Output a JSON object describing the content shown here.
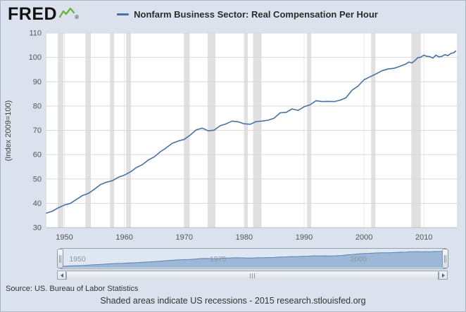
{
  "header": {
    "logo_text": "FRED",
    "registered_mark": "®",
    "legend_label": "Nonfarm Business Sector: Real Compensation Per Hour"
  },
  "chart_data": {
    "type": "line",
    "title": "Nonfarm Business Sector: Real Compensation Per Hour",
    "xlabel": "",
    "ylabel": "(Index 2009=100)",
    "xlim": [
      1947,
      2015.5
    ],
    "ylim": [
      30,
      110
    ],
    "xticks": [
      1950,
      1960,
      1970,
      1980,
      1990,
      2000,
      2010
    ],
    "yticks": [
      30,
      40,
      50,
      60,
      70,
      80,
      90,
      100,
      110
    ],
    "grid": true,
    "legend_position": "top",
    "line_color": "#4572a7",
    "recession_color": "#e0e0e0",
    "series": [
      {
        "name": "Nonfarm Business Sector: Real Compensation Per Hour",
        "x": [
          1947,
          1948,
          1949,
          1950,
          1951,
          1952,
          1953,
          1954,
          1955,
          1956,
          1957,
          1958,
          1959,
          1960,
          1961,
          1962,
          1963,
          1964,
          1965,
          1966,
          1967,
          1968,
          1969,
          1970,
          1971,
          1972,
          1973,
          1974,
          1975,
          1976,
          1977,
          1978,
          1979,
          1980,
          1981,
          1982,
          1983,
          1984,
          1985,
          1986,
          1987,
          1988,
          1989,
          1990,
          1991,
          1992,
          1993,
          1994,
          1995,
          1996,
          1997,
          1998,
          1999,
          2000,
          2001,
          2002,
          2003,
          2004,
          2005,
          2006,
          2007,
          2007.5,
          2008,
          2008.5,
          2009,
          2009.5,
          2010,
          2010.5,
          2011,
          2011.5,
          2012,
          2012.5,
          2013,
          2013.5,
          2014,
          2014.5,
          2015,
          2015.3
        ],
        "y": [
          36.0,
          36.8,
          38.2,
          39.3,
          40.0,
          41.6,
          43.2,
          44.1,
          45.8,
          47.7,
          48.7,
          49.3,
          50.7,
          51.6,
          52.9,
          54.7,
          55.9,
          57.8,
          59.1,
          61.2,
          62.8,
          64.7,
          65.6,
          66.3,
          68.1,
          70.2,
          70.9,
          69.8,
          70.1,
          71.9,
          72.7,
          73.8,
          73.5,
          72.7,
          72.5,
          73.6,
          73.8,
          74.2,
          75.0,
          77.2,
          77.4,
          78.8,
          78.2,
          79.7,
          80.5,
          82.2,
          81.8,
          81.9,
          81.8,
          82.4,
          83.4,
          86.5,
          88.2,
          90.8,
          92.0,
          93.2,
          94.5,
          95.2,
          95.5,
          96.3,
          97.3,
          98.1,
          97.7,
          98.7,
          99.9,
          100.1,
          100.9,
          100.4,
          100.3,
          99.7,
          100.9,
          100.2,
          100.4,
          101.1,
          100.7,
          101.6,
          101.9,
          102.6
        ]
      }
    ],
    "recessions": [
      [
        1948.9,
        1949.8
      ],
      [
        1953.5,
        1954.4
      ],
      [
        1957.6,
        1958.3
      ],
      [
        1960.3,
        1961.1
      ],
      [
        1969.9,
        1970.9
      ],
      [
        1973.9,
        1975.2
      ],
      [
        1980.0,
        1980.6
      ],
      [
        1981.5,
        1982.9
      ],
      [
        1990.5,
        1991.2
      ],
      [
        2001.2,
        2001.9
      ],
      [
        2007.9,
        2009.5
      ]
    ]
  },
  "navigator": {
    "labels": [
      {
        "year": 1950,
        "text": "1950"
      },
      {
        "year": 1975,
        "text": "1975"
      },
      {
        "year": 2000,
        "text": "2000"
      }
    ]
  },
  "footer": {
    "source": "Source: US. Bureau of Labor Statistics",
    "note": "Shaded areas indicate US recessions - 2015 research.stlouisfed.org"
  }
}
